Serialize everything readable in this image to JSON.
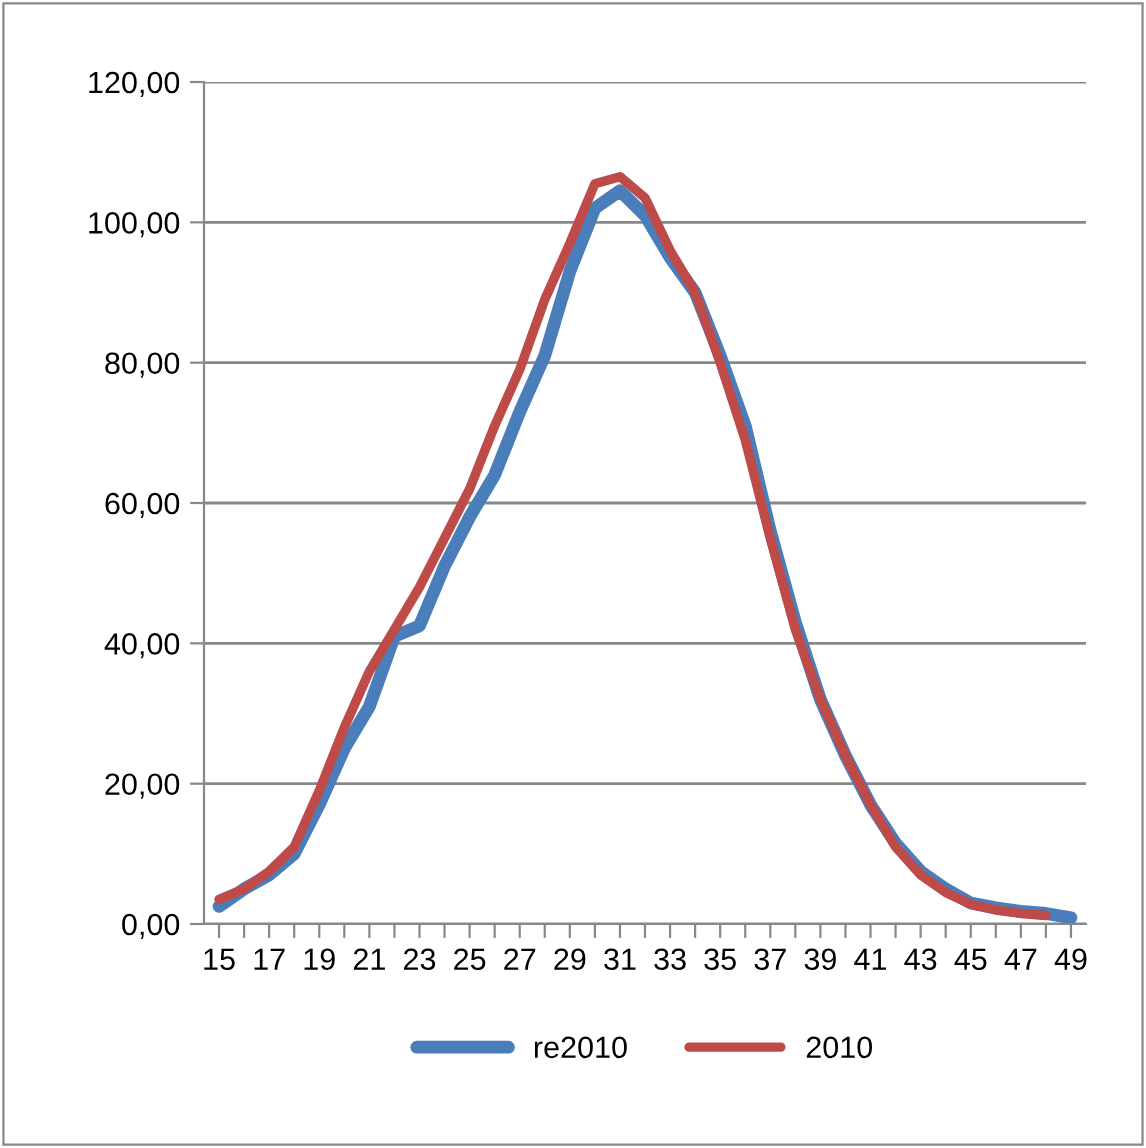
{
  "chart_data": {
    "type": "line",
    "categories": [
      "15",
      null,
      "17",
      null,
      "19",
      null,
      "21",
      null,
      "23",
      null,
      "25",
      null,
      "27",
      null,
      "29",
      null,
      "31",
      null,
      "33",
      null,
      "35",
      null,
      "37",
      null,
      "39",
      null,
      "41",
      null,
      "43",
      null,
      "45",
      null,
      "47",
      null,
      "49"
    ],
    "series": [
      {
        "name": "re2010",
        "color": "#4a7ebb",
        "values": [
          2.5,
          5,
          7,
          10,
          17,
          25,
          31,
          41,
          42.5,
          51,
          58,
          64,
          73,
          81,
          93,
          102,
          104.5,
          101,
          95,
          90,
          81,
          71,
          56,
          43,
          32,
          24,
          17,
          11.5,
          7.5,
          5,
          3,
          2.3,
          1.8,
          1.5,
          0.9
        ]
      },
      {
        "name": "2010",
        "color": "#be4b48",
        "values": [
          3.5,
          5,
          7.5,
          11,
          19,
          28,
          36,
          42,
          48,
          55,
          62,
          71,
          79,
          89,
          97,
          105.5,
          106.5,
          103.5,
          96,
          90,
          80,
          69,
          55,
          42,
          32,
          24,
          17,
          11,
          7,
          4.5,
          2.8,
          2,
          1.5,
          1.2,
          null
        ]
      }
    ],
    "ylim": [
      0,
      120
    ],
    "yticks": [
      {
        "value": 0,
        "label": "0,00"
      },
      {
        "value": 20,
        "label": "20,00"
      },
      {
        "value": 40,
        "label": "40,00"
      },
      {
        "value": 60,
        "label": "60,00"
      },
      {
        "value": 80,
        "label": "80,00"
      },
      {
        "value": 100,
        "label": "100,00"
      },
      {
        "value": 120,
        "label": "120,00"
      }
    ],
    "grid": "y",
    "legend": "bottom",
    "line_style": "solid",
    "marker": "none"
  }
}
